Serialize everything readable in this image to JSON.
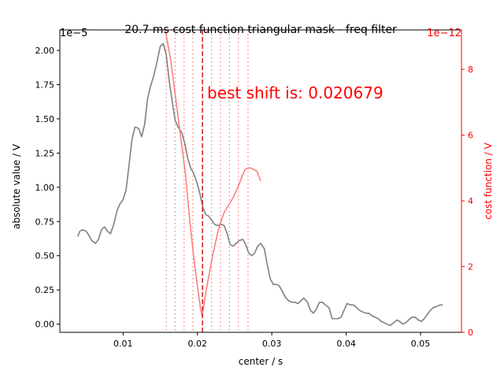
{
  "chart_data": {
    "type": "line",
    "title": "20.7 ms cost function triangular mask - freq filter",
    "xlabel": "center / s",
    "ylabel": "absolute value / V",
    "y2label": "cost function / V",
    "xlim": [
      0.0015,
      0.0555
    ],
    "ylim": [
      -0.06,
      2.15
    ],
    "y2lim": [
      0.0,
      9.2
    ],
    "x_ticks": [
      0.01,
      0.02,
      0.03,
      0.04,
      0.05
    ],
    "x_tick_labels": [
      "0.01",
      "0.02",
      "0.03",
      "0.04",
      "0.05"
    ],
    "y_ticks": [
      0.0,
      0.25,
      0.5,
      0.75,
      1.0,
      1.25,
      1.5,
      1.75,
      2.0
    ],
    "y_tick_labels": [
      "0.00",
      "0.25",
      "0.50",
      "0.75",
      "1.00",
      "1.25",
      "1.50",
      "1.75",
      "2.00"
    ],
    "y_scale_label": "1e−5",
    "y2_ticks": [
      0,
      2,
      4,
      6,
      8
    ],
    "y2_tick_labels": [
      "0",
      "2",
      "4",
      "6",
      "8"
    ],
    "y2_scale_label": "1e−12",
    "annotation": "best shift is: 0.020679",
    "best_shift": 0.020679,
    "mask_lines": [
      0.0158,
      0.017,
      0.0182,
      0.0194,
      0.0219,
      0.0231,
      0.0243,
      0.0255,
      0.0268
    ],
    "grid": false,
    "colors": {
      "signal": "#808080",
      "cost": "#ff7f7f",
      "accent": "#ff0000",
      "best": "#d62728"
    },
    "series": [
      {
        "axis": "left",
        "x": [
          0.0039,
          0.0042,
          0.0046,
          0.005,
          0.0054,
          0.0058,
          0.0063,
          0.0067,
          0.0071,
          0.0075,
          0.0079,
          0.0083,
          0.0087,
          0.0092,
          0.0096,
          0.01,
          0.0104,
          0.0108,
          0.0112,
          0.0116,
          0.0121,
          0.0125,
          0.0129,
          0.0133,
          0.0137,
          0.0141,
          0.0145,
          0.015,
          0.0154,
          0.0158,
          0.0162,
          0.0166,
          0.017,
          0.0174,
          0.0179,
          0.0183,
          0.0187,
          0.0191,
          0.0195,
          0.0199,
          0.0203,
          0.0207,
          0.0211,
          0.0215,
          0.0219,
          0.0223,
          0.0227,
          0.0232,
          0.0236,
          0.024,
          0.0244,
          0.0248,
          0.0252,
          0.0256,
          0.0261,
          0.0265,
          0.0269,
          0.0273,
          0.0277,
          0.0281,
          0.0285,
          0.029,
          0.0294,
          0.0298,
          0.0302,
          0.0306,
          0.031,
          0.0314,
          0.0319,
          0.0323,
          0.0327,
          0.0331,
          0.0335,
          0.0339,
          0.0343,
          0.0348,
          0.0352,
          0.0356,
          0.036,
          0.0364,
          0.0368,
          0.0372,
          0.0377,
          0.0381,
          0.0385,
          0.0389,
          0.0393,
          0.0397,
          0.0401,
          0.0406,
          0.041,
          0.0414,
          0.0418,
          0.0422,
          0.0426,
          0.043,
          0.0435,
          0.0439,
          0.0443,
          0.0447,
          0.0451,
          0.0455,
          0.0459,
          0.0464,
          0.0468,
          0.0472,
          0.0476,
          0.048,
          0.0484,
          0.0488,
          0.0493,
          0.0497,
          0.0501,
          0.0505,
          0.0509,
          0.0513,
          0.0517,
          0.0522,
          0.0526,
          0.053
        ],
        "values": [
          0.64,
          0.68,
          0.69,
          0.68,
          0.65,
          0.61,
          0.59,
          0.62,
          0.69,
          0.71,
          0.68,
          0.66,
          0.72,
          0.83,
          0.88,
          0.91,
          0.98,
          1.16,
          1.35,
          1.44,
          1.43,
          1.37,
          1.46,
          1.65,
          1.74,
          1.81,
          1.9,
          2.03,
          2.05,
          1.97,
          1.78,
          1.63,
          1.49,
          1.44,
          1.4,
          1.32,
          1.21,
          1.14,
          1.1,
          1.04,
          0.96,
          0.86,
          0.8,
          0.79,
          0.76,
          0.73,
          0.72,
          0.73,
          0.72,
          0.66,
          0.58,
          0.57,
          0.59,
          0.61,
          0.62,
          0.58,
          0.52,
          0.5,
          0.52,
          0.57,
          0.59,
          0.55,
          0.43,
          0.33,
          0.29,
          0.29,
          0.28,
          0.24,
          0.19,
          0.17,
          0.16,
          0.16,
          0.15,
          0.17,
          0.19,
          0.16,
          0.1,
          0.08,
          0.11,
          0.16,
          0.16,
          0.14,
          0.12,
          0.04,
          0.04,
          0.04,
          0.05,
          0.1,
          0.15,
          0.14,
          0.14,
          0.12,
          0.1,
          0.09,
          0.08,
          0.08,
          0.06,
          0.05,
          0.04,
          0.02,
          0.01,
          0.0,
          -0.01,
          0.01,
          0.03,
          0.02,
          0.0,
          0.01,
          0.03,
          0.05,
          0.05,
          0.03,
          0.02,
          0.04,
          0.07,
          0.1,
          0.12,
          0.13,
          0.14,
          0.14
        ]
      },
      {
        "axis": "right",
        "x": [
          0.0148,
          0.0152,
          0.0156,
          0.016,
          0.0164,
          0.0168,
          0.0172,
          0.0176,
          0.018,
          0.0184,
          0.0188,
          0.0192,
          0.0196,
          0.02,
          0.0204,
          0.0206,
          0.0208,
          0.0212,
          0.0216,
          0.022,
          0.0224,
          0.0228,
          0.0232,
          0.0236,
          0.024,
          0.0244,
          0.0248,
          0.0252,
          0.0256,
          0.026,
          0.0264,
          0.0268,
          0.0272,
          0.0276,
          0.028,
          0.0285
        ],
        "values": [
          9.8,
          9.6,
          9.3,
          8.8,
          8.3,
          7.6,
          6.9,
          6.2,
          5.5,
          4.8,
          3.8,
          2.9,
          2.1,
          1.4,
          0.75,
          0.5,
          0.75,
          1.3,
          1.8,
          2.3,
          2.7,
          3.1,
          3.4,
          3.65,
          3.8,
          3.95,
          4.1,
          4.3,
          4.5,
          4.75,
          4.95,
          5.0,
          5.0,
          4.95,
          4.9,
          4.6
        ]
      }
    ]
  }
}
